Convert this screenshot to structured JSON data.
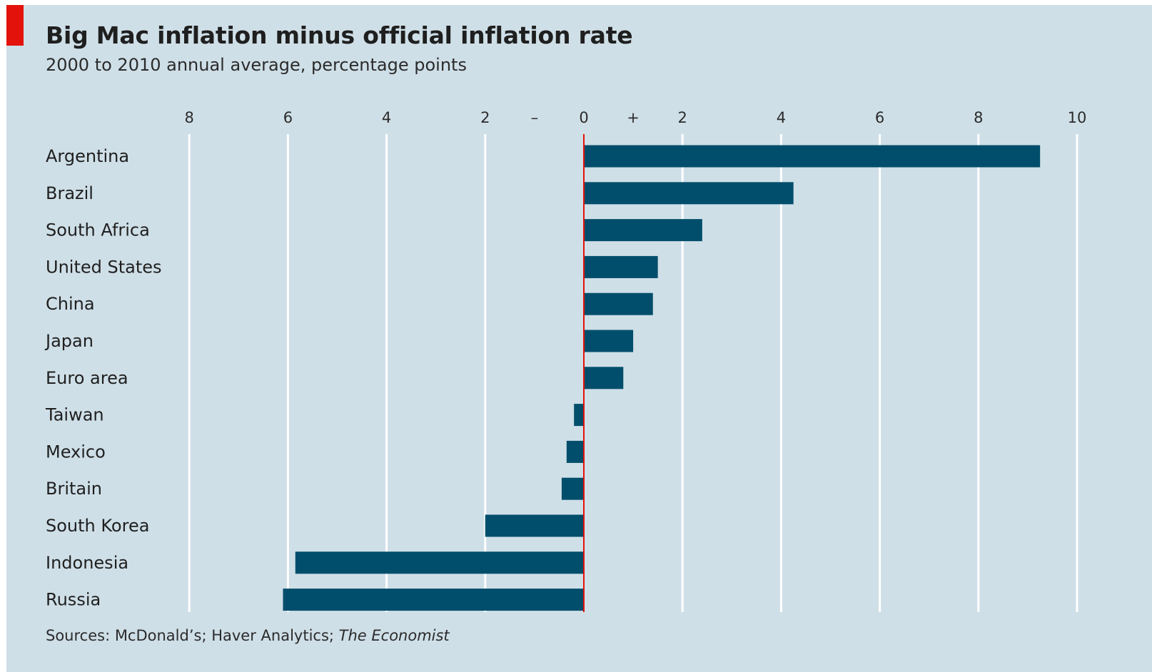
{
  "header": {
    "title": "Big Mac inflation minus official inflation rate",
    "subtitle": "2000 to 2010 annual average, percentage points"
  },
  "footer": {
    "sources_prefix": "Sources: McDonald’s; Haver Analytics; ",
    "sources_publication": "The Economist"
  },
  "colors": {
    "accent": "#e3120b",
    "background": "#cfdfe7",
    "bar": "#004e6b",
    "zero_line": "#e3120b",
    "gridline": "#ffffff",
    "text": "#1f1f1f"
  },
  "chart_data": {
    "type": "bar",
    "orientation": "horizontal",
    "title": "Big Mac inflation minus official inflation rate",
    "subtitle": "2000 to 2010 annual average, percentage points",
    "xlim": [
      -8,
      10
    ],
    "x_ticks": [
      -8,
      -6,
      -4,
      -2,
      0,
      2,
      4,
      6,
      8,
      10
    ],
    "x_tick_labels": [
      "8",
      "6",
      "4",
      "2",
      "0",
      "2",
      "4",
      "6",
      "8",
      "10"
    ],
    "sign_markers": {
      "negative": "–",
      "positive": "+"
    },
    "grid": true,
    "categories": [
      "Argentina",
      "Brazil",
      "South Africa",
      "United States",
      "China",
      "Japan",
      "Euro area",
      "Taiwan",
      "Mexico",
      "Britain",
      "South Korea",
      "Indonesia",
      "Russia"
    ],
    "values": [
      9.25,
      4.25,
      2.4,
      1.5,
      1.4,
      1.0,
      0.8,
      -0.2,
      -0.35,
      -0.45,
      -2.0,
      -5.85,
      -6.1
    ]
  }
}
